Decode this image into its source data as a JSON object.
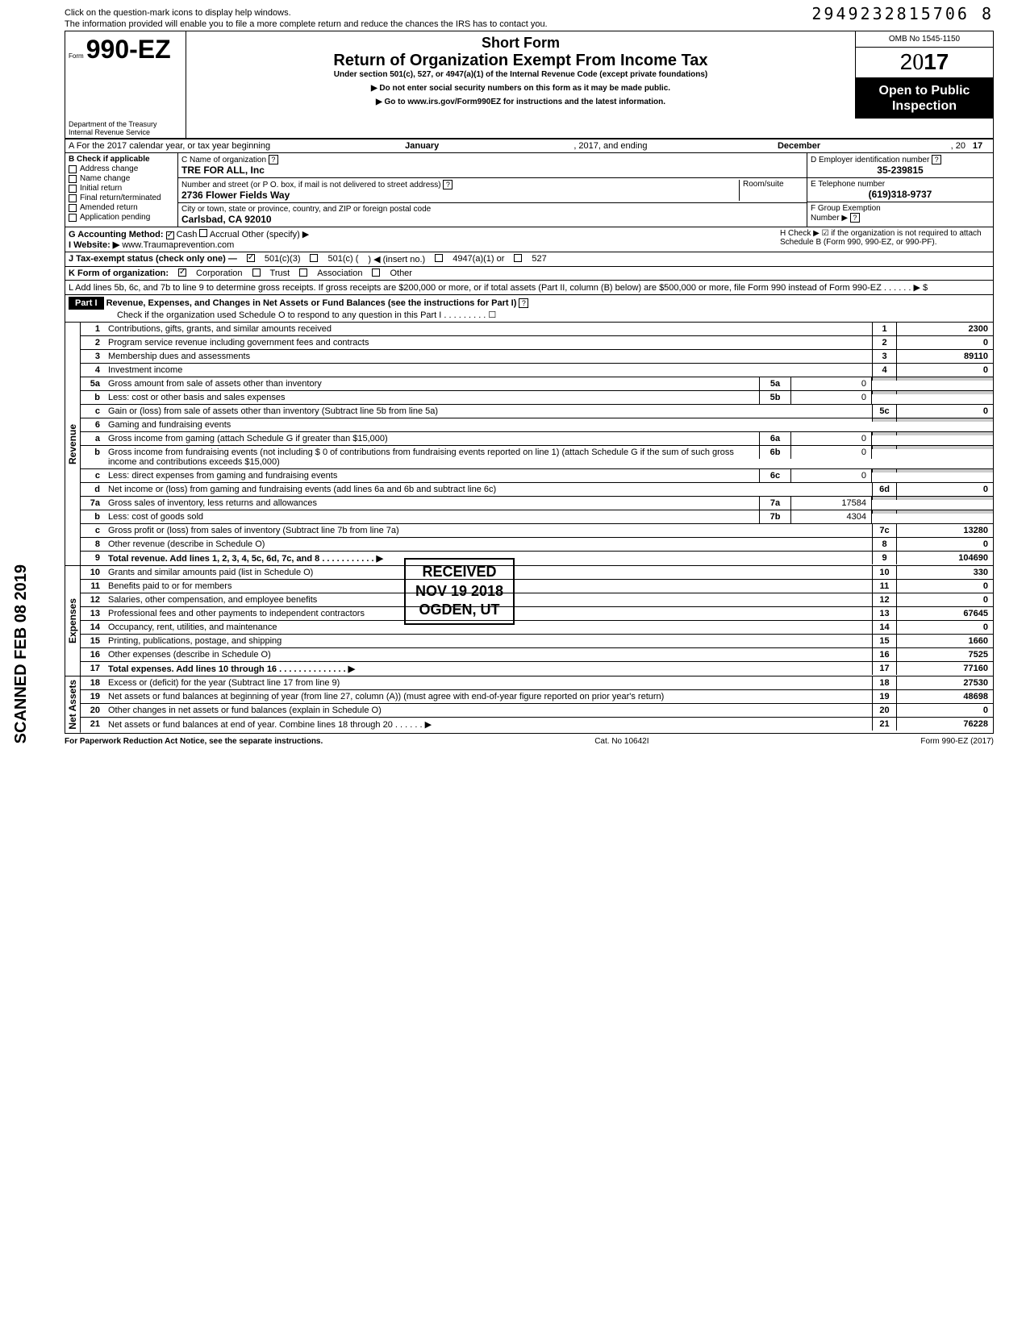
{
  "topHint1": "Click on the question-mark icons to display help windows.",
  "topHint2": "The information provided will enable you to file a more complete return and reduce the chances the IRS has to contact you.",
  "barcode": "2949232815706 8",
  "formPrefix": "Form",
  "formNumber": "990-EZ",
  "dept1": "Department of the Treasury",
  "dept2": "Internal Revenue Service",
  "shortForm": "Short Form",
  "formTitle": "Return of Organization Exempt From Income Tax",
  "formSubtitle": "Under section 501(c), 527, or 4947(a)(1) of the Internal Revenue Code (except private foundations)",
  "instr1": "▶ Do not enter social security numbers on this form as it may be made public.",
  "instr2": "▶ Go to www.irs.gov/Form990EZ for instructions and the latest information.",
  "omb": "OMB No 1545-1150",
  "year": "2017",
  "openPublic1": "Open to Public",
  "openPublic2": "Inspection",
  "lineA": {
    "label": "A For the 2017 calendar year, or tax year beginning",
    "beginMonth": "January",
    "mid": ", 2017, and ending",
    "endMonth": "December",
    "endYear": "17"
  },
  "sectionB": {
    "header": "B Check if applicable",
    "items": [
      "Address change",
      "Name change",
      "Initial return",
      "Final return/terminated",
      "Amended return",
      "Application pending"
    ]
  },
  "sectionC": {
    "nameLabel": "C Name of organization",
    "name": "TRE FOR ALL, Inc",
    "streetLabel": "Number and street (or P O. box, if mail is not delivered to street address)",
    "roomLabel": "Room/suite",
    "street": "2736 Flower Fields Way",
    "cityLabel": "City or town, state or province, country, and ZIP or foreign postal code",
    "city": "Carlsbad, CA 92010"
  },
  "sectionD": {
    "label": "D Employer identification number",
    "val": "35-239815"
  },
  "sectionE": {
    "label": "E Telephone number",
    "val": "(619)318-9737"
  },
  "sectionF": {
    "label": "F Group Exemption",
    "label2": "Number ▶"
  },
  "lineG": {
    "label": "G Accounting Method:",
    "cash": "Cash",
    "accrual": "Accrual",
    "other": "Other (specify) ▶"
  },
  "lineH": {
    "text": "H Check ▶ ☑ if the organization is not required to attach Schedule B (Form 990, 990-EZ, or 990-PF)."
  },
  "lineI": {
    "label": "I Website: ▶",
    "val": "www.Traumaprevention.com"
  },
  "lineJ": {
    "label": "J Tax-exempt status (check only one) —",
    "c3": "501(c)(3)",
    "c": "501(c) (",
    "ins": ") ◀ (insert no.)",
    "a1": "4947(a)(1) or",
    "s527": "527"
  },
  "lineK": {
    "label": "K Form of organization:",
    "corp": "Corporation",
    "trust": "Trust",
    "assoc": "Association",
    "other": "Other"
  },
  "lineL": "L Add lines 5b, 6c, and 7b to line 9 to determine gross receipts. If gross receipts are $200,000 or more, or if total assets (Part II, column (B) below) are $500,000 or more, file Form 990 instead of Form 990-EZ . . . . . . ▶ $",
  "part1": {
    "label": "Part I",
    "title": "Revenue, Expenses, and Changes in Net Assets or Fund Balances (see the instructions for Part I)",
    "check": "Check if the organization used Schedule O to respond to any question in this Part I . . . . . . . . . ☐"
  },
  "sideLabels": {
    "rev": "Revenue",
    "exp": "Expenses",
    "net": "Net Assets"
  },
  "lines": {
    "l1": {
      "n": "1",
      "d": "Contributions, gifts, grants, and similar amounts received",
      "box": "1",
      "amt": "2300"
    },
    "l2": {
      "n": "2",
      "d": "Program service revenue including government fees and contracts",
      "box": "2",
      "amt": "0"
    },
    "l3": {
      "n": "3",
      "d": "Membership dues and assessments",
      "box": "3",
      "amt": "89110"
    },
    "l4": {
      "n": "4",
      "d": "Investment income",
      "box": "4",
      "amt": "0"
    },
    "l5a": {
      "n": "5a",
      "d": "Gross amount from sale of assets other than inventory",
      "sb": "5a",
      "sv": "0"
    },
    "l5b": {
      "n": "b",
      "d": "Less: cost or other basis and sales expenses",
      "sb": "5b",
      "sv": "0"
    },
    "l5c": {
      "n": "c",
      "d": "Gain or (loss) from sale of assets other than inventory (Subtract line 5b from line 5a)",
      "box": "5c",
      "amt": "0"
    },
    "l6": {
      "n": "6",
      "d": "Gaming and fundraising events"
    },
    "l6a": {
      "n": "a",
      "d": "Gross income from gaming (attach Schedule G if greater than $15,000)",
      "sb": "6a",
      "sv": "0"
    },
    "l6b": {
      "n": "b",
      "d": "Gross income from fundraising events (not including  $              0 of contributions from fundraising events reported on line 1) (attach Schedule G if the sum of such gross income and contributions exceeds $15,000)",
      "sb": "6b",
      "sv": "0"
    },
    "l6c": {
      "n": "c",
      "d": "Less: direct expenses from gaming and fundraising events",
      "sb": "6c",
      "sv": "0"
    },
    "l6d": {
      "n": "d",
      "d": "Net income or (loss) from gaming and fundraising events (add lines 6a and 6b and subtract line 6c)",
      "box": "6d",
      "amt": "0"
    },
    "l7a": {
      "n": "7a",
      "d": "Gross sales of inventory, less returns and allowances",
      "sb": "7a",
      "sv": "17584"
    },
    "l7b": {
      "n": "b",
      "d": "Less: cost of goods sold",
      "sb": "7b",
      "sv": "4304"
    },
    "l7c": {
      "n": "c",
      "d": "Gross profit or (loss) from sales of inventory (Subtract line 7b from line 7a)",
      "box": "7c",
      "amt": "13280"
    },
    "l8": {
      "n": "8",
      "d": "Other revenue (describe in Schedule O)",
      "box": "8",
      "amt": "0"
    },
    "l9": {
      "n": "9",
      "d": "Total revenue. Add lines 1, 2, 3, 4, 5c, 6d, 7c, and 8 . . . . . . . . . . . ▶",
      "box": "9",
      "amt": "104690",
      "bold": true
    },
    "l10": {
      "n": "10",
      "d": "Grants and similar amounts paid (list in Schedule O)",
      "box": "10",
      "amt": "330"
    },
    "l11": {
      "n": "11",
      "d": "Benefits paid to or for members",
      "box": "11",
      "amt": "0"
    },
    "l12": {
      "n": "12",
      "d": "Salaries, other compensation, and employee benefits",
      "box": "12",
      "amt": "0"
    },
    "l13": {
      "n": "13",
      "d": "Professional fees and other payments to independent contractors",
      "box": "13",
      "amt": "67645"
    },
    "l14": {
      "n": "14",
      "d": "Occupancy, rent, utilities, and maintenance",
      "box": "14",
      "amt": "0"
    },
    "l15": {
      "n": "15",
      "d": "Printing, publications, postage, and shipping",
      "box": "15",
      "amt": "1660"
    },
    "l16": {
      "n": "16",
      "d": "Other expenses (describe in Schedule O)",
      "box": "16",
      "amt": "7525"
    },
    "l17": {
      "n": "17",
      "d": "Total expenses. Add lines 10 through 16 . . . . . . . . . . . . . . ▶",
      "box": "17",
      "amt": "77160",
      "bold": true
    },
    "l18": {
      "n": "18",
      "d": "Excess or (deficit) for the year (Subtract line 17 from line 9)",
      "box": "18",
      "amt": "27530"
    },
    "l19": {
      "n": "19",
      "d": "Net assets or fund balances at beginning of year (from line 27, column (A)) (must agree with end-of-year figure reported on prior year's return)",
      "box": "19",
      "amt": "48698"
    },
    "l20": {
      "n": "20",
      "d": "Other changes in net assets or fund balances (explain in Schedule O)",
      "box": "20",
      "amt": "0"
    },
    "l21": {
      "n": "21",
      "d": "Net assets or fund balances at end of year. Combine lines 18 through 20 . . . . . . ▶",
      "box": "21",
      "amt": "76228"
    }
  },
  "footer": {
    "left": "For Paperwork Reduction Act Notice, see the separate instructions.",
    "mid": "Cat. No 10642I",
    "right": "Form 990-EZ (2017)"
  },
  "scanned": "SCANNED FEB 08 2019",
  "stamp": {
    "l1": "RECEIVED",
    "l2": "NOV 19 2018",
    "l3": "OGDEN, UT"
  }
}
